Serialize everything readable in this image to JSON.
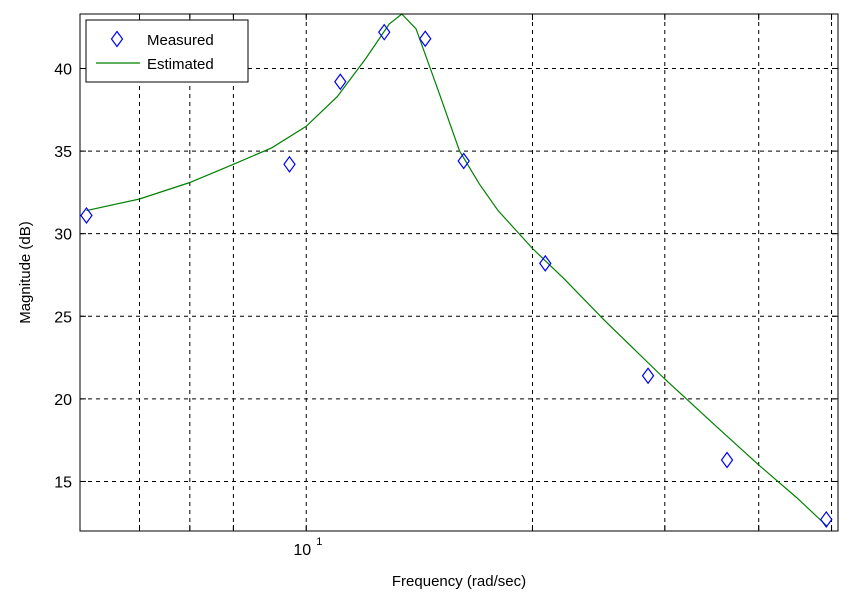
{
  "chart_data": {
    "type": "line",
    "title": "",
    "xlabel": "Frequency (rad/sec)",
    "ylabel": "Magnitude (dB)",
    "xscale": "log",
    "xlim": [
      5.0,
      51.0
    ],
    "ylim": [
      12.0,
      43.3
    ],
    "x_tick_labels": [
      {
        "value": 10,
        "base": "10",
        "exponent": "1"
      }
    ],
    "x_gridlines": [
      6,
      7,
      8,
      10,
      20,
      30,
      40,
      50
    ],
    "y_ticks": [
      15,
      20,
      25,
      30,
      35,
      40
    ],
    "grid": true,
    "legend": {
      "position": "top-left",
      "entries": [
        "Measured",
        "Estimated"
      ]
    },
    "colors": {
      "measured": "#0000ff",
      "estimated": "#008000"
    },
    "series": [
      {
        "name": "Measured",
        "style": "diamond-markers",
        "points": [
          {
            "x": 5.1,
            "y": 31.1
          },
          {
            "x": 9.5,
            "y": 34.2
          },
          {
            "x": 11.1,
            "y": 39.2
          },
          {
            "x": 12.7,
            "y": 42.2
          },
          {
            "x": 14.4,
            "y": 41.8
          },
          {
            "x": 16.2,
            "y": 34.4
          },
          {
            "x": 20.8,
            "y": 28.2
          },
          {
            "x": 28.5,
            "y": 21.4
          },
          {
            "x": 36.3,
            "y": 16.3
          },
          {
            "x": 49.2,
            "y": 12.7
          }
        ]
      },
      {
        "name": "Estimated",
        "style": "line",
        "points": [
          {
            "x": 5.1,
            "y": 31.4
          },
          {
            "x": 6.0,
            "y": 32.1
          },
          {
            "x": 7.0,
            "y": 33.1
          },
          {
            "x": 8.0,
            "y": 34.2
          },
          {
            "x": 9.0,
            "y": 35.2
          },
          {
            "x": 10.0,
            "y": 36.5
          },
          {
            "x": 11.0,
            "y": 38.3
          },
          {
            "x": 12.0,
            "y": 40.6
          },
          {
            "x": 12.9,
            "y": 42.7
          },
          {
            "x": 13.4,
            "y": 43.3
          },
          {
            "x": 14.0,
            "y": 42.4
          },
          {
            "x": 15.0,
            "y": 38.6
          },
          {
            "x": 16.0,
            "y": 35.0
          },
          {
            "x": 17.0,
            "y": 33.0
          },
          {
            "x": 18.0,
            "y": 31.4
          },
          {
            "x": 20.0,
            "y": 29.1
          },
          {
            "x": 22.0,
            "y": 27.3
          },
          {
            "x": 25.0,
            "y": 24.7
          },
          {
            "x": 30.0,
            "y": 21.2
          },
          {
            "x": 35.0,
            "y": 18.4
          },
          {
            "x": 40.0,
            "y": 16.0
          },
          {
            "x": 45.0,
            "y": 14.0
          },
          {
            "x": 49.3,
            "y": 12.3
          }
        ]
      }
    ]
  }
}
